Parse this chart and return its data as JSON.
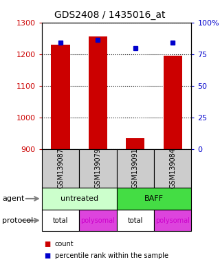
{
  "title": "GDS2408 / 1435016_at",
  "samples": [
    "GSM139087",
    "GSM139079",
    "GSM139091",
    "GSM139084"
  ],
  "counts": [
    1230,
    1255,
    935,
    1195
  ],
  "percentiles": [
    84,
    86,
    80,
    84
  ],
  "ylim_left": [
    900,
    1300
  ],
  "ylim_right": [
    0,
    100
  ],
  "yticks_left": [
    900,
    1000,
    1100,
    1200,
    1300
  ],
  "yticks_right": [
    0,
    25,
    50,
    75,
    100
  ],
  "ytick_labels_right": [
    "0",
    "25",
    "50",
    "75",
    "100%"
  ],
  "bar_color": "#cc0000",
  "scatter_color": "#0000cc",
  "bar_width": 0.5,
  "agent_untreated_color": "#ccffcc",
  "agent_baff_color": "#44dd44",
  "protocol_colors": [
    "#ffffff",
    "#dd44dd",
    "#ffffff",
    "#dd44dd"
  ],
  "protocol_labels": [
    "total",
    "polysomal",
    "total",
    "polysomal"
  ],
  "protocol_text_colors": [
    "#000000",
    "#cc00cc",
    "#000000",
    "#cc00cc"
  ],
  "sample_box_color": "#cccccc",
  "axis_label_color_left": "#cc0000",
  "axis_label_color_right": "#0000cc"
}
